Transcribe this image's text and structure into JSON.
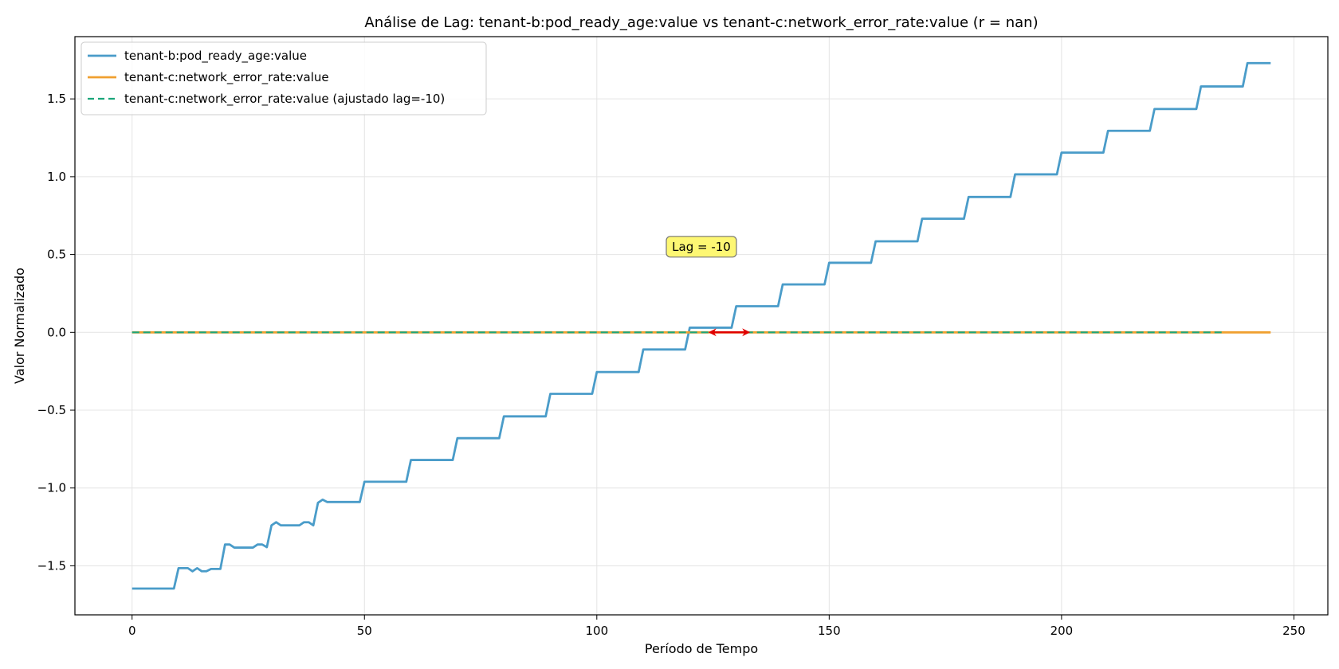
{
  "chart_data": {
    "type": "line",
    "title": "Análise de Lag: tenant-b:pod_ready_age:value vs tenant-c:network_error_rate:value (r = nan)",
    "xlabel": "Período de Tempo",
    "ylabel": "Valor Normalizado",
    "xlim": [
      -12.3,
      257.3
    ],
    "ylim": [
      -1.815,
      1.9
    ],
    "xticks": [
      0,
      50,
      100,
      150,
      200,
      250
    ],
    "yticks": [
      -1.5,
      -1.0,
      -0.5,
      0.0,
      0.5,
      1.0,
      1.5
    ],
    "xtick_labels": [
      "0",
      "50",
      "100",
      "150",
      "200",
      "250"
    ],
    "ytick_labels": [
      "−1.5",
      "−1.0",
      "−0.5",
      "0.0",
      "0.5",
      "1.0",
      "1.5"
    ],
    "grid": true,
    "legend_position": "top-left",
    "series": [
      {
        "name": "tenant-b:pod_ready_age:value",
        "color": "#4a9cc9",
        "style": "solid",
        "points": [
          [
            0,
            -1.646
          ],
          [
            9,
            -1.646
          ],
          [
            10,
            -1.515
          ],
          [
            12,
            -1.515
          ],
          [
            13,
            -1.535
          ],
          [
            14,
            -1.515
          ],
          [
            15,
            -1.535
          ],
          [
            16,
            -1.535
          ],
          [
            17,
            -1.52
          ],
          [
            19,
            -1.52
          ],
          [
            20,
            -1.363
          ],
          [
            21,
            -1.363
          ],
          [
            22,
            -1.383
          ],
          [
            26,
            -1.383
          ],
          [
            27,
            -1.363
          ],
          [
            28,
            -1.363
          ],
          [
            29,
            -1.38
          ],
          [
            30,
            -1.24
          ],
          [
            31,
            -1.22
          ],
          [
            32,
            -1.24
          ],
          [
            36,
            -1.24
          ],
          [
            37,
            -1.22
          ],
          [
            38,
            -1.22
          ],
          [
            39,
            -1.24
          ],
          [
            40,
            -1.095
          ],
          [
            41,
            -1.075
          ],
          [
            42,
            -1.09
          ],
          [
            49,
            -1.09
          ],
          [
            50,
            -0.96
          ],
          [
            59,
            -0.96
          ],
          [
            60,
            -0.82
          ],
          [
            69,
            -0.82
          ],
          [
            70,
            -0.68
          ],
          [
            79,
            -0.68
          ],
          [
            80,
            -0.54
          ],
          [
            89,
            -0.54
          ],
          [
            90,
            -0.395
          ],
          [
            99,
            -0.395
          ],
          [
            100,
            -0.255
          ],
          [
            109,
            -0.255
          ],
          [
            110,
            -0.11
          ],
          [
            119,
            -0.11
          ],
          [
            120,
            0.03
          ],
          [
            129,
            0.03
          ],
          [
            130,
            0.168
          ],
          [
            139,
            0.168
          ],
          [
            140,
            0.308
          ],
          [
            149,
            0.308
          ],
          [
            150,
            0.447
          ],
          [
            159,
            0.447
          ],
          [
            160,
            0.585
          ],
          [
            169,
            0.585
          ],
          [
            170,
            0.73
          ],
          [
            179,
            0.73
          ],
          [
            180,
            0.87
          ],
          [
            189,
            0.87
          ],
          [
            190,
            1.015
          ],
          [
            199,
            1.015
          ],
          [
            200,
            1.155
          ],
          [
            209,
            1.155
          ],
          [
            210,
            1.295
          ],
          [
            219,
            1.295
          ],
          [
            220,
            1.435
          ],
          [
            229,
            1.435
          ],
          [
            230,
            1.58
          ],
          [
            239,
            1.58
          ],
          [
            240,
            1.73
          ],
          [
            245,
            1.73
          ]
        ]
      },
      {
        "name": "tenant-c:network_error_rate:value",
        "color": "#f0a030",
        "style": "solid",
        "points": [
          [
            0,
            0
          ],
          [
            245,
            0
          ]
        ]
      },
      {
        "name": "tenant-c:network_error_rate:value (ajustado lag=-10)",
        "color": "#1aa67a",
        "style": "dashed",
        "points": [
          [
            0,
            0
          ],
          [
            235,
            0
          ]
        ]
      }
    ],
    "annotations": [
      {
        "text": "Lag = -10",
        "x": 122.5,
        "y": 0.55
      }
    ],
    "arrow": {
      "from": [
        124,
        0
      ],
      "to": [
        133,
        0
      ],
      "color": "#e00000",
      "style": "double-headed"
    }
  }
}
